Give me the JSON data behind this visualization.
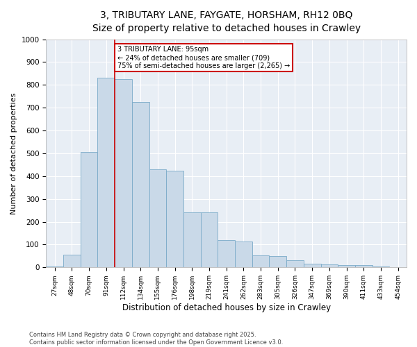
{
  "title_line1": "3, TRIBUTARY LANE, FAYGATE, HORSHAM, RH12 0BQ",
  "title_line2": "Size of property relative to detached houses in Crawley",
  "xlabel": "Distribution of detached houses by size in Crawley",
  "ylabel": "Number of detached properties",
  "bar_color": "#c9d9e8",
  "bar_edge_color": "#7aaac8",
  "bg_color": "#e8eef5",
  "grid_color": "#ffffff",
  "categories": [
    "27sqm",
    "48sqm",
    "70sqm",
    "91sqm",
    "112sqm",
    "134sqm",
    "155sqm",
    "176sqm",
    "198sqm",
    "219sqm",
    "241sqm",
    "262sqm",
    "283sqm",
    "305sqm",
    "326sqm",
    "347sqm",
    "369sqm",
    "390sqm",
    "411sqm",
    "433sqm",
    "454sqm"
  ],
  "values": [
    5,
    57,
    505,
    830,
    825,
    725,
    430,
    425,
    240,
    240,
    120,
    115,
    52,
    50,
    30,
    15,
    12,
    10,
    10,
    5,
    2
  ],
  "ylim": [
    0,
    1000
  ],
  "yticks": [
    0,
    100,
    200,
    300,
    400,
    500,
    600,
    700,
    800,
    900,
    1000
  ],
  "annotation_title": "3 TRIBUTARY LANE: 95sqm",
  "annotation_line1": "← 24% of detached houses are smaller (709)",
  "annotation_line2": "75% of semi-detached houses are larger (2,265) →",
  "footer_line1": "Contains HM Land Registry data © Crown copyright and database right 2025.",
  "footer_line2": "Contains public sector information licensed under the Open Government Licence v3.0.",
  "title_fontsize": 10,
  "subtitle_fontsize": 9,
  "annotation_border_color": "#cc0000",
  "vline_color": "#cc0000",
  "vline_x_index": 3.5
}
